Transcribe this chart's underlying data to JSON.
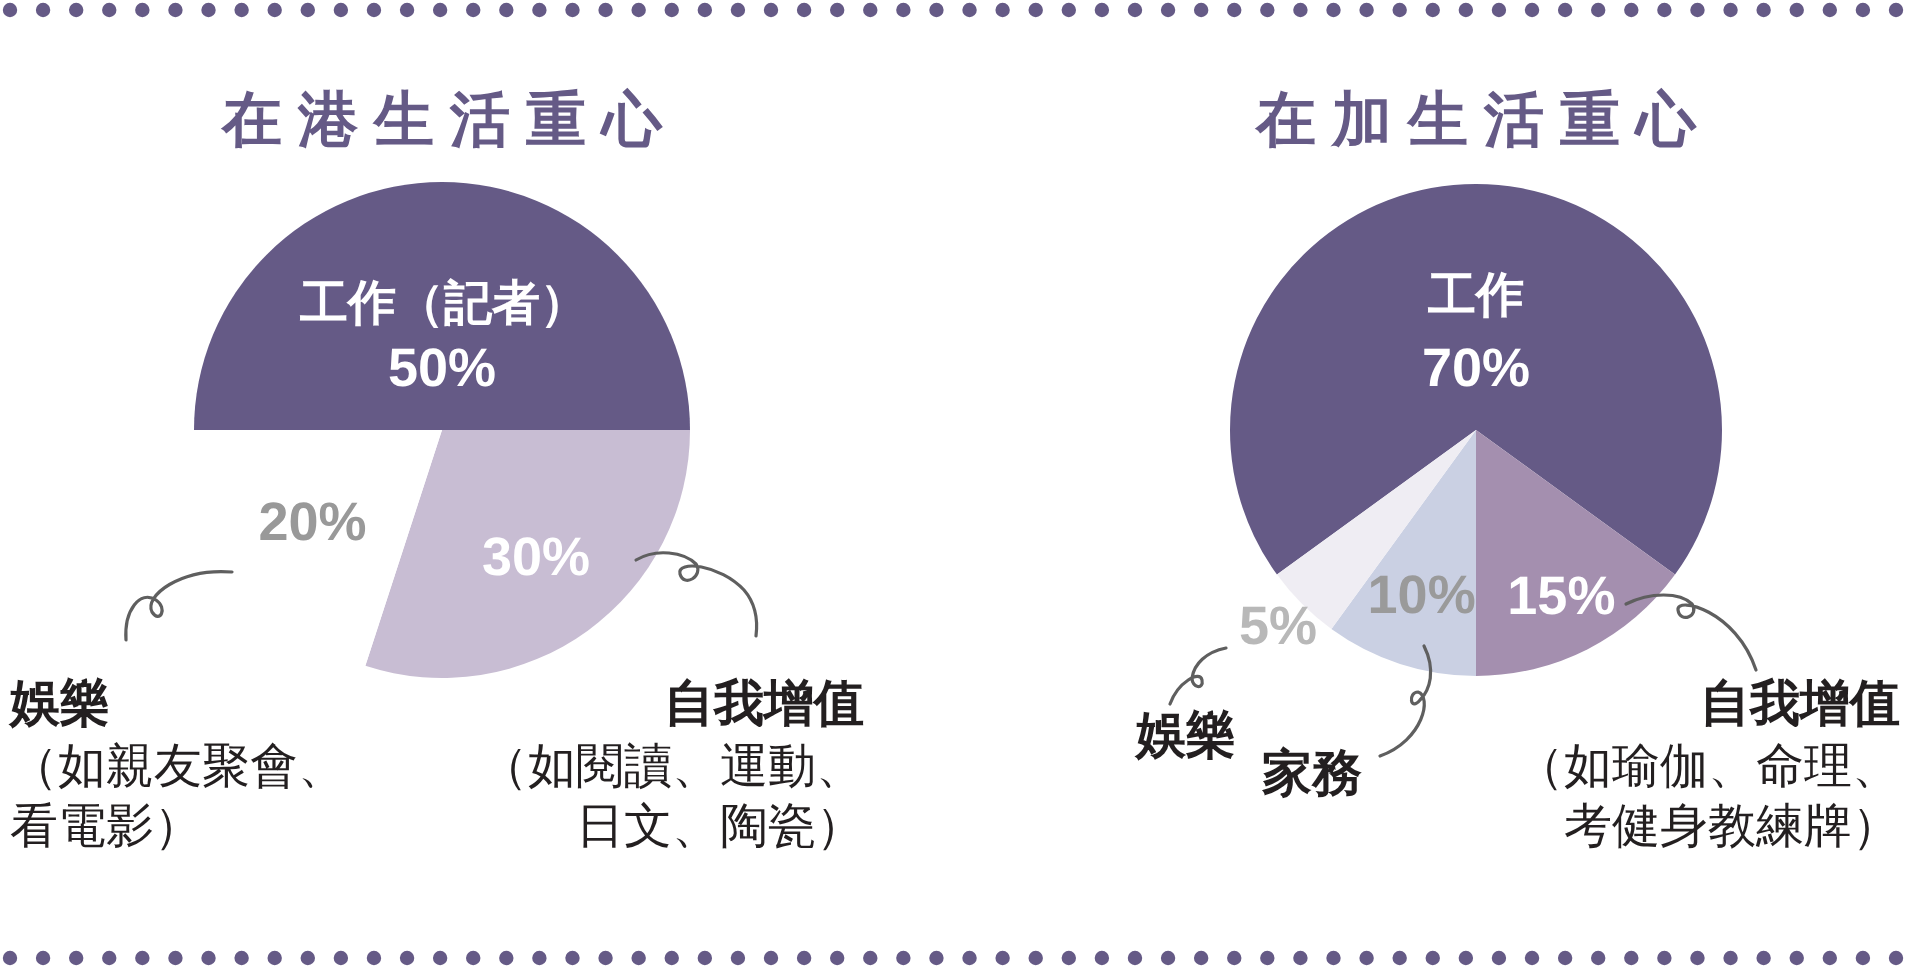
{
  "chart_data": [
    {
      "type": "pie",
      "title": "在港生活重心",
      "categories": [
        "工作（記者）",
        "自我增值",
        "娛樂"
      ],
      "values": [
        50,
        30,
        20
      ],
      "colors": [
        "#655a86",
        "#c8bdd3",
        "#ffffff"
      ],
      "value_labels": [
        "50%",
        "30%",
        "20%"
      ],
      "annotations": [
        "（如閱讀、運動、日文、陶瓷）",
        "（如親友聚會、看電影）"
      ]
    },
    {
      "type": "pie",
      "title": "在加生活重心",
      "categories": [
        "工作",
        "自我增值",
        "家務",
        "娛樂"
      ],
      "values": [
        70,
        15,
        10,
        5
      ],
      "colors": [
        "#655a86",
        "#a48faf",
        "#cad0e3",
        "#efedf3"
      ],
      "value_labels": [
        "70%",
        "15%",
        "10%",
        "5%"
      ],
      "annotations": [
        "（如瑜伽、命理、考健身教練牌）"
      ]
    }
  ]
}
